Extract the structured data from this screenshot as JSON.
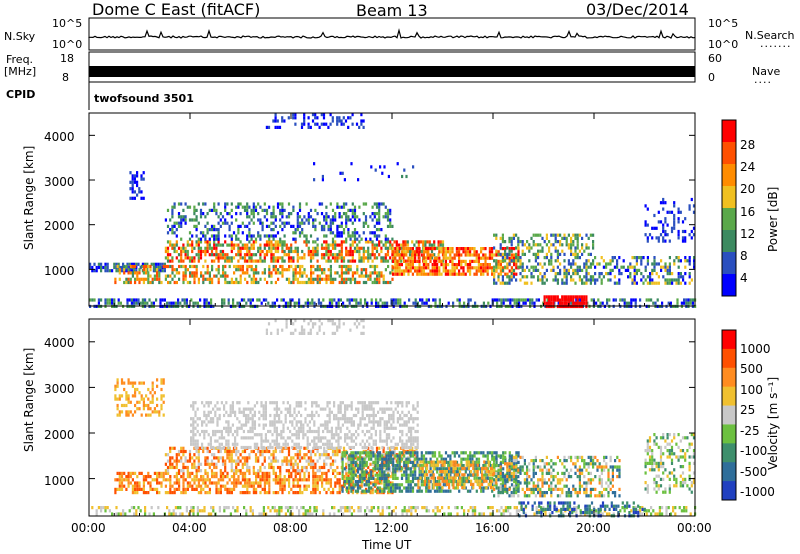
{
  "header": {
    "title": "Dome C East (fitACF)",
    "beam": "Beam 13",
    "date": "03/Dec/2014"
  },
  "status_panels": {
    "nsky_label": "N.Sky",
    "nsky_ticks": [
      "10^5",
      "10^0"
    ],
    "nsearch_label": "N.Search",
    "nsearch_ticks": [
      "10^5",
      "10^0"
    ],
    "freq_label_1": "Freq.",
    "freq_label_2": "[MHz]",
    "freq_ticks": [
      "18",
      "8"
    ],
    "nave_label": "Nave",
    "nave_ticks": [
      "60",
      "0"
    ],
    "cpid_label": "CPID",
    "cpid_value": "twofsound 3501"
  },
  "colors": {
    "power_scale": [
      "#0000ff",
      "#2a4fbf",
      "#3c8a60",
      "#5aa84a",
      "#f0c020",
      "#ff8c00",
      "#ff5000",
      "#ff0000"
    ],
    "velocity_scale": [
      "#2040c0",
      "#2f6e9a",
      "#3e8f6c",
      "#6cc040",
      "#c8c8c8",
      "#f0c030",
      "#ff8c20",
      "#ff5000",
      "#ff0000"
    ]
  },
  "chart_data": [
    {
      "type": "heatmap",
      "name": "power",
      "xlabel": "Time UT",
      "ylabel": "Slant Range [km]",
      "x_ticks": [
        "00:00",
        "04:00",
        "08:00",
        "12:00",
        "16:00",
        "20:00",
        "00:00"
      ],
      "y_ticks": [
        "1000",
        "2000",
        "3000",
        "4000"
      ],
      "ylim": [
        180,
        4500
      ],
      "colorbar_label": "Power [dB]",
      "colorbar_ticks": [
        "28",
        "24",
        "20",
        "16",
        "12",
        "8",
        "4"
      ],
      "clim": [
        0,
        32
      ]
    },
    {
      "type": "heatmap",
      "name": "velocity",
      "xlabel": "Time UT",
      "ylabel": "Slant Range [km]",
      "x_ticks": [
        "00:00",
        "04:00",
        "08:00",
        "12:00",
        "16:00",
        "20:00",
        "00:00"
      ],
      "y_ticks": [
        "1000",
        "2000",
        "3000",
        "4000"
      ],
      "ylim": [
        180,
        4500
      ],
      "colorbar_label": "Velocity [m s⁻¹]",
      "colorbar_ticks": [
        "1000",
        "500",
        "100",
        "25",
        "-25",
        "-100",
        "-500",
        "-1000"
      ]
    }
  ]
}
